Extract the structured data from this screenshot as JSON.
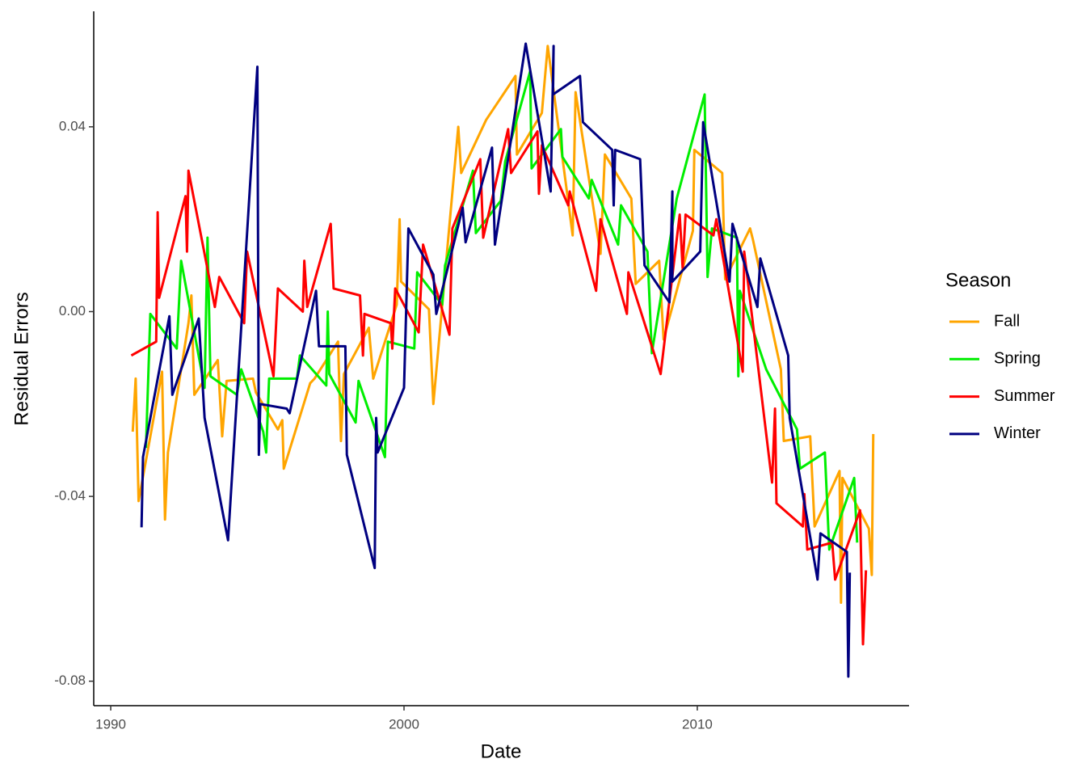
{
  "chart_data": {
    "type": "line",
    "x_label": "Date",
    "y_label": "Residual Errors",
    "legend_title": "Season",
    "legend_position": "right",
    "xlim": [
      1989.42,
      2017.22
    ],
    "ylim": [
      -0.0853,
      0.065
    ],
    "xticks": [
      1990,
      2000,
      2010
    ],
    "yticks": [
      -0.08,
      -0.04,
      {
        "value": 0,
        "label": "0.00"
      },
      0.04
    ],
    "series": [
      {
        "name": "Fall",
        "color": "#FFA500",
        "x": [
          1990.75,
          1990.85,
          1990.95,
          1991.75,
          1991.85,
          1991.95,
          1992.65,
          1992.75,
          1992.85,
          1993.65,
          1993.8,
          1993.95,
          1994.85,
          1994.95,
          1995.7,
          1995.85,
          1995.9,
          1996.8,
          1996.95,
          1997.75,
          1997.85,
          1997.95,
          1998.8,
          1998.95,
          1999.75,
          1999.85,
          1999.9,
          2000.85,
          2001.0,
          2001.85,
          2001.95,
          2002.8,
          2003.8,
          2003.85,
          2004.7,
          2004.9,
          2005.75,
          2005.85,
          2006.7,
          2006.85,
          2007.75,
          2007.9,
          2008.7,
          2008.85,
          2009.85,
          2009.9,
          2010.85,
          2010.95,
          2011.8,
          2011.9,
          2012.85,
          2012.95,
          2013.85,
          2014.0,
          2014.85,
          2014.9,
          2014.95,
          2015.85,
          2015.95,
          2016.0
        ],
        "values": [
          -0.026,
          -0.0145,
          -0.041,
          -0.013,
          -0.045,
          -0.0305,
          -0.0025,
          0.0035,
          -0.018,
          -0.0105,
          -0.027,
          -0.015,
          -0.0145,
          -0.0175,
          -0.0255,
          -0.0235,
          -0.034,
          -0.0155,
          -0.0145,
          -0.0065,
          -0.028,
          -0.0135,
          -0.0035,
          -0.0145,
          0.0015,
          0.02,
          0.0065,
          0.0005,
          -0.02,
          0.04,
          0.03,
          0.0415,
          0.051,
          0.034,
          0.043,
          0.0575,
          0.0165,
          0.0475,
          0.0125,
          0.034,
          0.0245,
          0.006,
          0.011,
          -0.006,
          0.0175,
          0.035,
          0.03,
          0.007,
          0.018,
          0.0155,
          -0.0125,
          -0.028,
          -0.027,
          -0.0465,
          -0.0345,
          -0.063,
          -0.036,
          -0.047,
          -0.057,
          -0.0265
        ]
      },
      {
        "name": "Spring",
        "color": "#00EE00",
        "x": [
          1991.2,
          1991.35,
          1992.25,
          1992.4,
          1993.2,
          1993.3,
          1993.4,
          1994.3,
          1994.45,
          1995.2,
          1995.3,
          1995.4,
          1996.35,
          1996.45,
          1997.35,
          1997.4,
          1997.45,
          1998.35,
          1998.45,
          1999.35,
          1999.45,
          2000.35,
          2000.45,
          2001.3,
          2001.4,
          2002.35,
          2002.45,
          2003.3,
          2003.45,
          2004.3,
          2004.35,
          2005.35,
          2005.4,
          2006.3,
          2006.4,
          2007.3,
          2007.4,
          2008.3,
          2008.45,
          2009.3,
          2010.25,
          2010.35,
          2010.5,
          2011.35,
          2011.4,
          2011.45,
          2012.35,
          2013.4,
          2013.5,
          2014.35,
          2014.5,
          2015.35,
          2015.45
        ],
        "values": [
          -0.0295,
          -0.0005,
          -0.008,
          0.011,
          -0.0165,
          0.016,
          -0.014,
          -0.018,
          -0.0125,
          -0.026,
          -0.0305,
          -0.0145,
          -0.0145,
          -0.0095,
          -0.016,
          0.0,
          -0.0135,
          -0.024,
          -0.015,
          -0.0315,
          -0.0065,
          -0.008,
          0.0085,
          0.0015,
          0.01,
          0.0305,
          0.017,
          0.024,
          0.0325,
          0.052,
          0.031,
          0.0395,
          0.0335,
          0.0245,
          0.0285,
          0.0145,
          0.023,
          0.013,
          -0.009,
          0.0245,
          0.047,
          0.0075,
          0.018,
          0.016,
          -0.014,
          0.0045,
          -0.0125,
          -0.0255,
          -0.034,
          -0.0305,
          -0.0515,
          -0.036,
          -0.05
        ]
      },
      {
        "name": "Summer",
        "color": "#FF0000",
        "x": [
          1990.7,
          1991.55,
          1991.6,
          1991.65,
          1992.55,
          1992.6,
          1992.65,
          1993.55,
          1993.7,
          1994.55,
          1994.65,
          1995.55,
          1995.7,
          1996.55,
          1996.6,
          1996.7,
          1997.5,
          1997.6,
          1998.5,
          1998.6,
          1998.65,
          1999.55,
          1999.6,
          1999.7,
          2000.5,
          2000.65,
          2001.55,
          2001.65,
          2002.6,
          2002.7,
          2003.55,
          2003.65,
          2004.55,
          2004.6,
          2004.7,
          2005.6,
          2005.65,
          2006.55,
          2006.7,
          2007.6,
          2007.65,
          2008.75,
          2009.4,
          2009.5,
          2009.6,
          2010.55,
          2010.65,
          2011.55,
          2011.6,
          2012.55,
          2012.65,
          2012.7,
          2013.6,
          2013.65,
          2013.75,
          2014.6,
          2014.7,
          2015.55,
          2015.65,
          2015.75
        ],
        "values": [
          -0.0095,
          -0.0065,
          0.0215,
          0.003,
          0.025,
          0.013,
          0.0305,
          0.001,
          0.0075,
          -0.0025,
          0.013,
          -0.014,
          0.005,
          0.0,
          0.011,
          0.001,
          0.019,
          0.005,
          0.0035,
          -0.0095,
          -0.0005,
          -0.0025,
          -0.008,
          0.005,
          -0.0045,
          0.0145,
          -0.005,
          0.018,
          0.033,
          0.016,
          0.0395,
          0.03,
          0.039,
          0.0255,
          0.036,
          0.023,
          0.026,
          0.0045,
          0.02,
          -0.0005,
          0.0085,
          -0.0135,
          0.021,
          0.0095,
          0.021,
          0.0165,
          0.02,
          -0.013,
          0.013,
          -0.037,
          -0.021,
          -0.0415,
          -0.0465,
          -0.0395,
          -0.0515,
          -0.05,
          -0.058,
          -0.043,
          -0.072,
          -0.056
        ]
      },
      {
        "name": "Winter",
        "color": "#000080",
        "x": [
          1991.05,
          1991.1,
          1992.0,
          1992.1,
          1993.0,
          1993.2,
          1994.0,
          1995.0,
          1995.05,
          1995.1,
          1996.0,
          1996.1,
          1997.0,
          1997.1,
          1998.0,
          1998.05,
          1999.0,
          1999.05,
          1999.1,
          2000.0,
          2000.15,
          2001.0,
          2001.1,
          2002.0,
          2002.1,
          2003.0,
          2003.1,
          2004.15,
          2005.0,
          2005.1,
          2005.08,
          2006.0,
          2006.1,
          2007.1,
          2007.15,
          2007.2,
          2008.05,
          2008.2,
          2009.05,
          2009.15,
          2009.15,
          2010.1,
          2010.2,
          2011.1,
          2011.2,
          2012.05,
          2012.15,
          2013.1,
          2013.15,
          2014.1,
          2014.2,
          2015.1,
          2015.15,
          2015.2
        ],
        "values": [
          -0.0467,
          -0.0315,
          -0.001,
          -0.018,
          -0.0015,
          -0.023,
          -0.0495,
          0.053,
          -0.031,
          -0.02,
          -0.021,
          -0.022,
          0.0045,
          -0.0075,
          -0.0075,
          -0.031,
          -0.0555,
          -0.023,
          -0.0305,
          -0.0165,
          0.018,
          0.008,
          -0.0005,
          0.0225,
          0.015,
          0.0355,
          0.0145,
          0.058,
          0.026,
          0.0575,
          0.047,
          0.051,
          0.041,
          0.035,
          0.023,
          0.035,
          0.033,
          0.01,
          0.002,
          0.026,
          0.0065,
          0.013,
          0.041,
          0.0065,
          0.019,
          0.001,
          0.0115,
          -0.0095,
          -0.023,
          -0.058,
          -0.048,
          -0.052,
          -0.079,
          -0.0565
        ]
      }
    ]
  }
}
